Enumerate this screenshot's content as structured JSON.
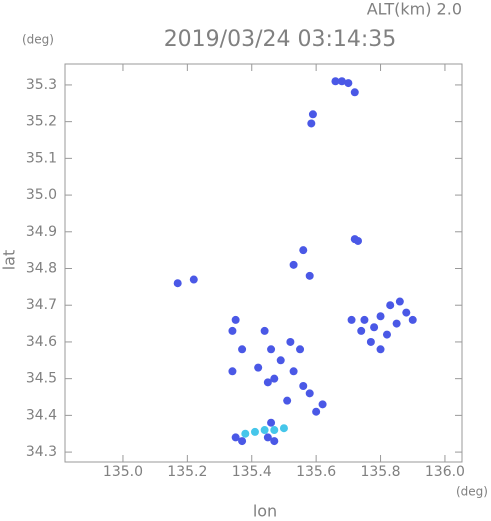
{
  "chart_data": {
    "type": "scatter",
    "header": "ALT(km) 2.0",
    "title": "2019/03/24 03:14:35",
    "y_unit": "(deg)",
    "x_unit": "(deg)",
    "x_label": "lon",
    "y_label": "lat",
    "xlim": [
      134.82,
      136.053
    ],
    "ylim": [
      34.273,
      35.357
    ],
    "xticks": [
      {
        "value": 135,
        "label": "135.0"
      },
      135.2,
      135.4,
      135.6,
      135.8,
      {
        "value": 136,
        "label": "136.0"
      }
    ],
    "yticks": [
      34.3,
      34.4,
      34.5,
      34.6,
      34.7,
      34.8,
      34.9,
      {
        "value": 35,
        "label": "35.0"
      },
      35.1,
      35.2,
      35.3
    ],
    "series": [
      {
        "color": "#4a58e6",
        "x": [
          135.66,
          135.68,
          135.7,
          135.72,
          135.59,
          135.585,
          135.72,
          135.73,
          135.56,
          135.53,
          135.58,
          135.17,
          135.22,
          135.75,
          135.78,
          135.8,
          135.83,
          135.86,
          135.88,
          135.9,
          135.85,
          135.82,
          135.77,
          135.74,
          135.8,
          135.71,
          135.35,
          135.34,
          135.37,
          135.44,
          135.46,
          135.49,
          135.47,
          135.45,
          135.52,
          135.55,
          135.53,
          135.56,
          135.42,
          135.34,
          135.51,
          135.58,
          135.6,
          135.62,
          135.35,
          135.37,
          135.46,
          135.45,
          135.47
        ],
        "values": [
          35.31,
          35.31,
          35.305,
          35.28,
          35.22,
          35.195,
          34.88,
          34.875,
          34.85,
          34.81,
          34.78,
          34.76,
          34.77,
          34.66,
          34.64,
          34.67,
          34.7,
          34.71,
          34.68,
          34.66,
          34.65,
          34.62,
          34.6,
          34.63,
          34.58,
          34.66,
          34.66,
          34.63,
          34.58,
          34.63,
          34.58,
          34.55,
          34.5,
          34.49,
          34.6,
          34.58,
          34.52,
          34.48,
          34.53,
          34.52,
          34.44,
          34.46,
          34.41,
          34.43,
          34.34,
          34.33,
          34.38,
          34.34,
          34.33
        ]
      },
      {
        "color": "#46c6ea",
        "x": [
          135.38,
          135.41,
          135.44,
          135.47,
          135.5
        ],
        "values": [
          34.35,
          34.355,
          34.36,
          34.36,
          34.365
        ]
      }
    ]
  }
}
